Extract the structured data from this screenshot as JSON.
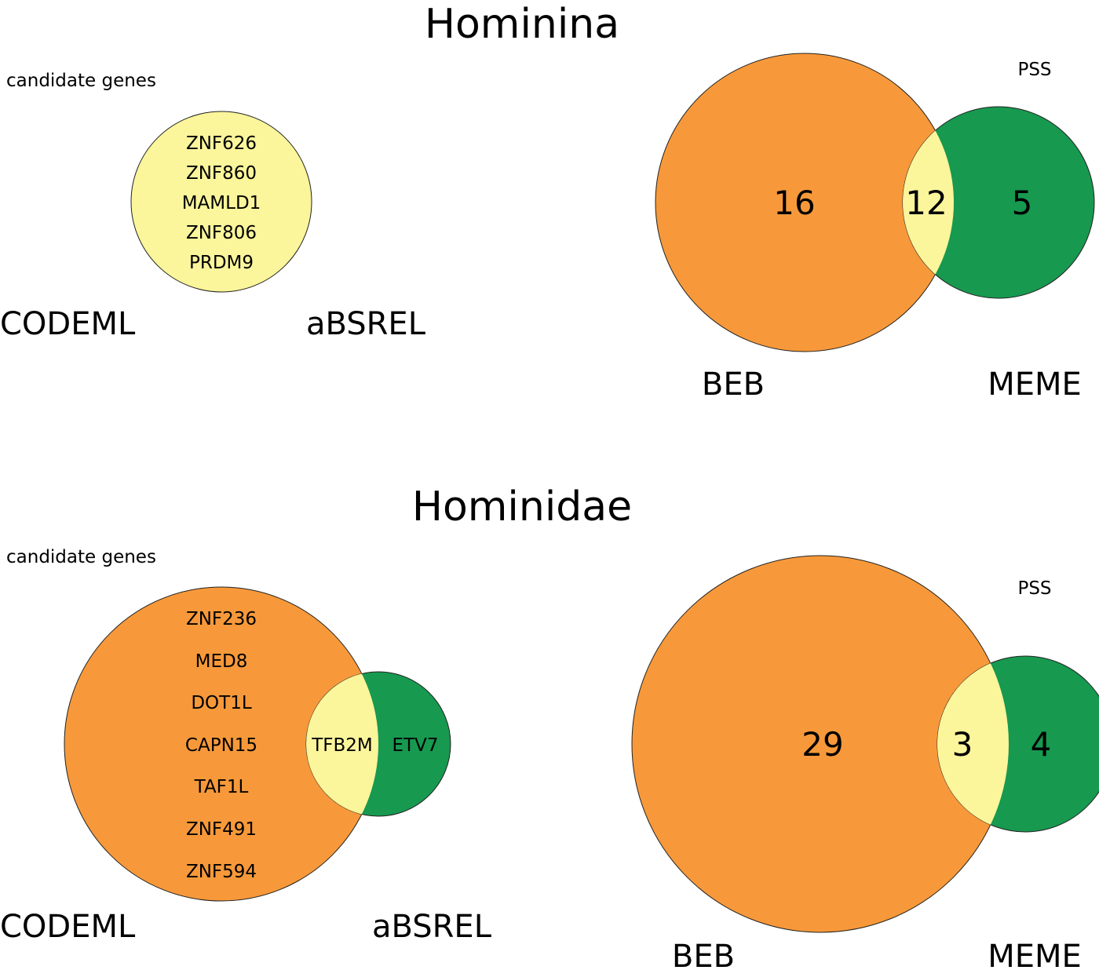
{
  "colors": {
    "orange": "#f7993a",
    "green": "#17994f",
    "yellow": "#fbf59b",
    "edge": "#222222"
  },
  "panels": [
    {
      "id": "hominina",
      "title": "Hominina",
      "candidate_label": "candidate genes",
      "candidate_venn": {
        "left_label": "CODEML",
        "right_label": "aBSREL",
        "left_only": [],
        "overlap": [
          "ZNF626",
          "ZNF860",
          "MAMLD1",
          "ZNF806",
          "PRDM9"
        ],
        "right_only": []
      },
      "pss_label": "PSS",
      "pss_venn": {
        "left_label": "BEB",
        "right_label": "MEME",
        "left_only": "16",
        "overlap": "12",
        "right_only": "5"
      }
    },
    {
      "id": "hominidae",
      "title": "Hominidae",
      "candidate_label": "candidate genes",
      "candidate_venn": {
        "left_label": "CODEML",
        "right_label": "aBSREL",
        "left_only": [
          "ZNF236",
          "MED8",
          "DOT1L",
          "CAPN15",
          "TAF1L",
          "ZNF491",
          "ZNF594"
        ],
        "overlap": [
          "TFB2M"
        ],
        "right_only": [
          "ETV7"
        ]
      },
      "pss_label": "PSS",
      "pss_venn": {
        "left_label": "BEB",
        "right_label": "MEME",
        "left_only": "29",
        "overlap": "3",
        "right_only": "4"
      }
    }
  ]
}
